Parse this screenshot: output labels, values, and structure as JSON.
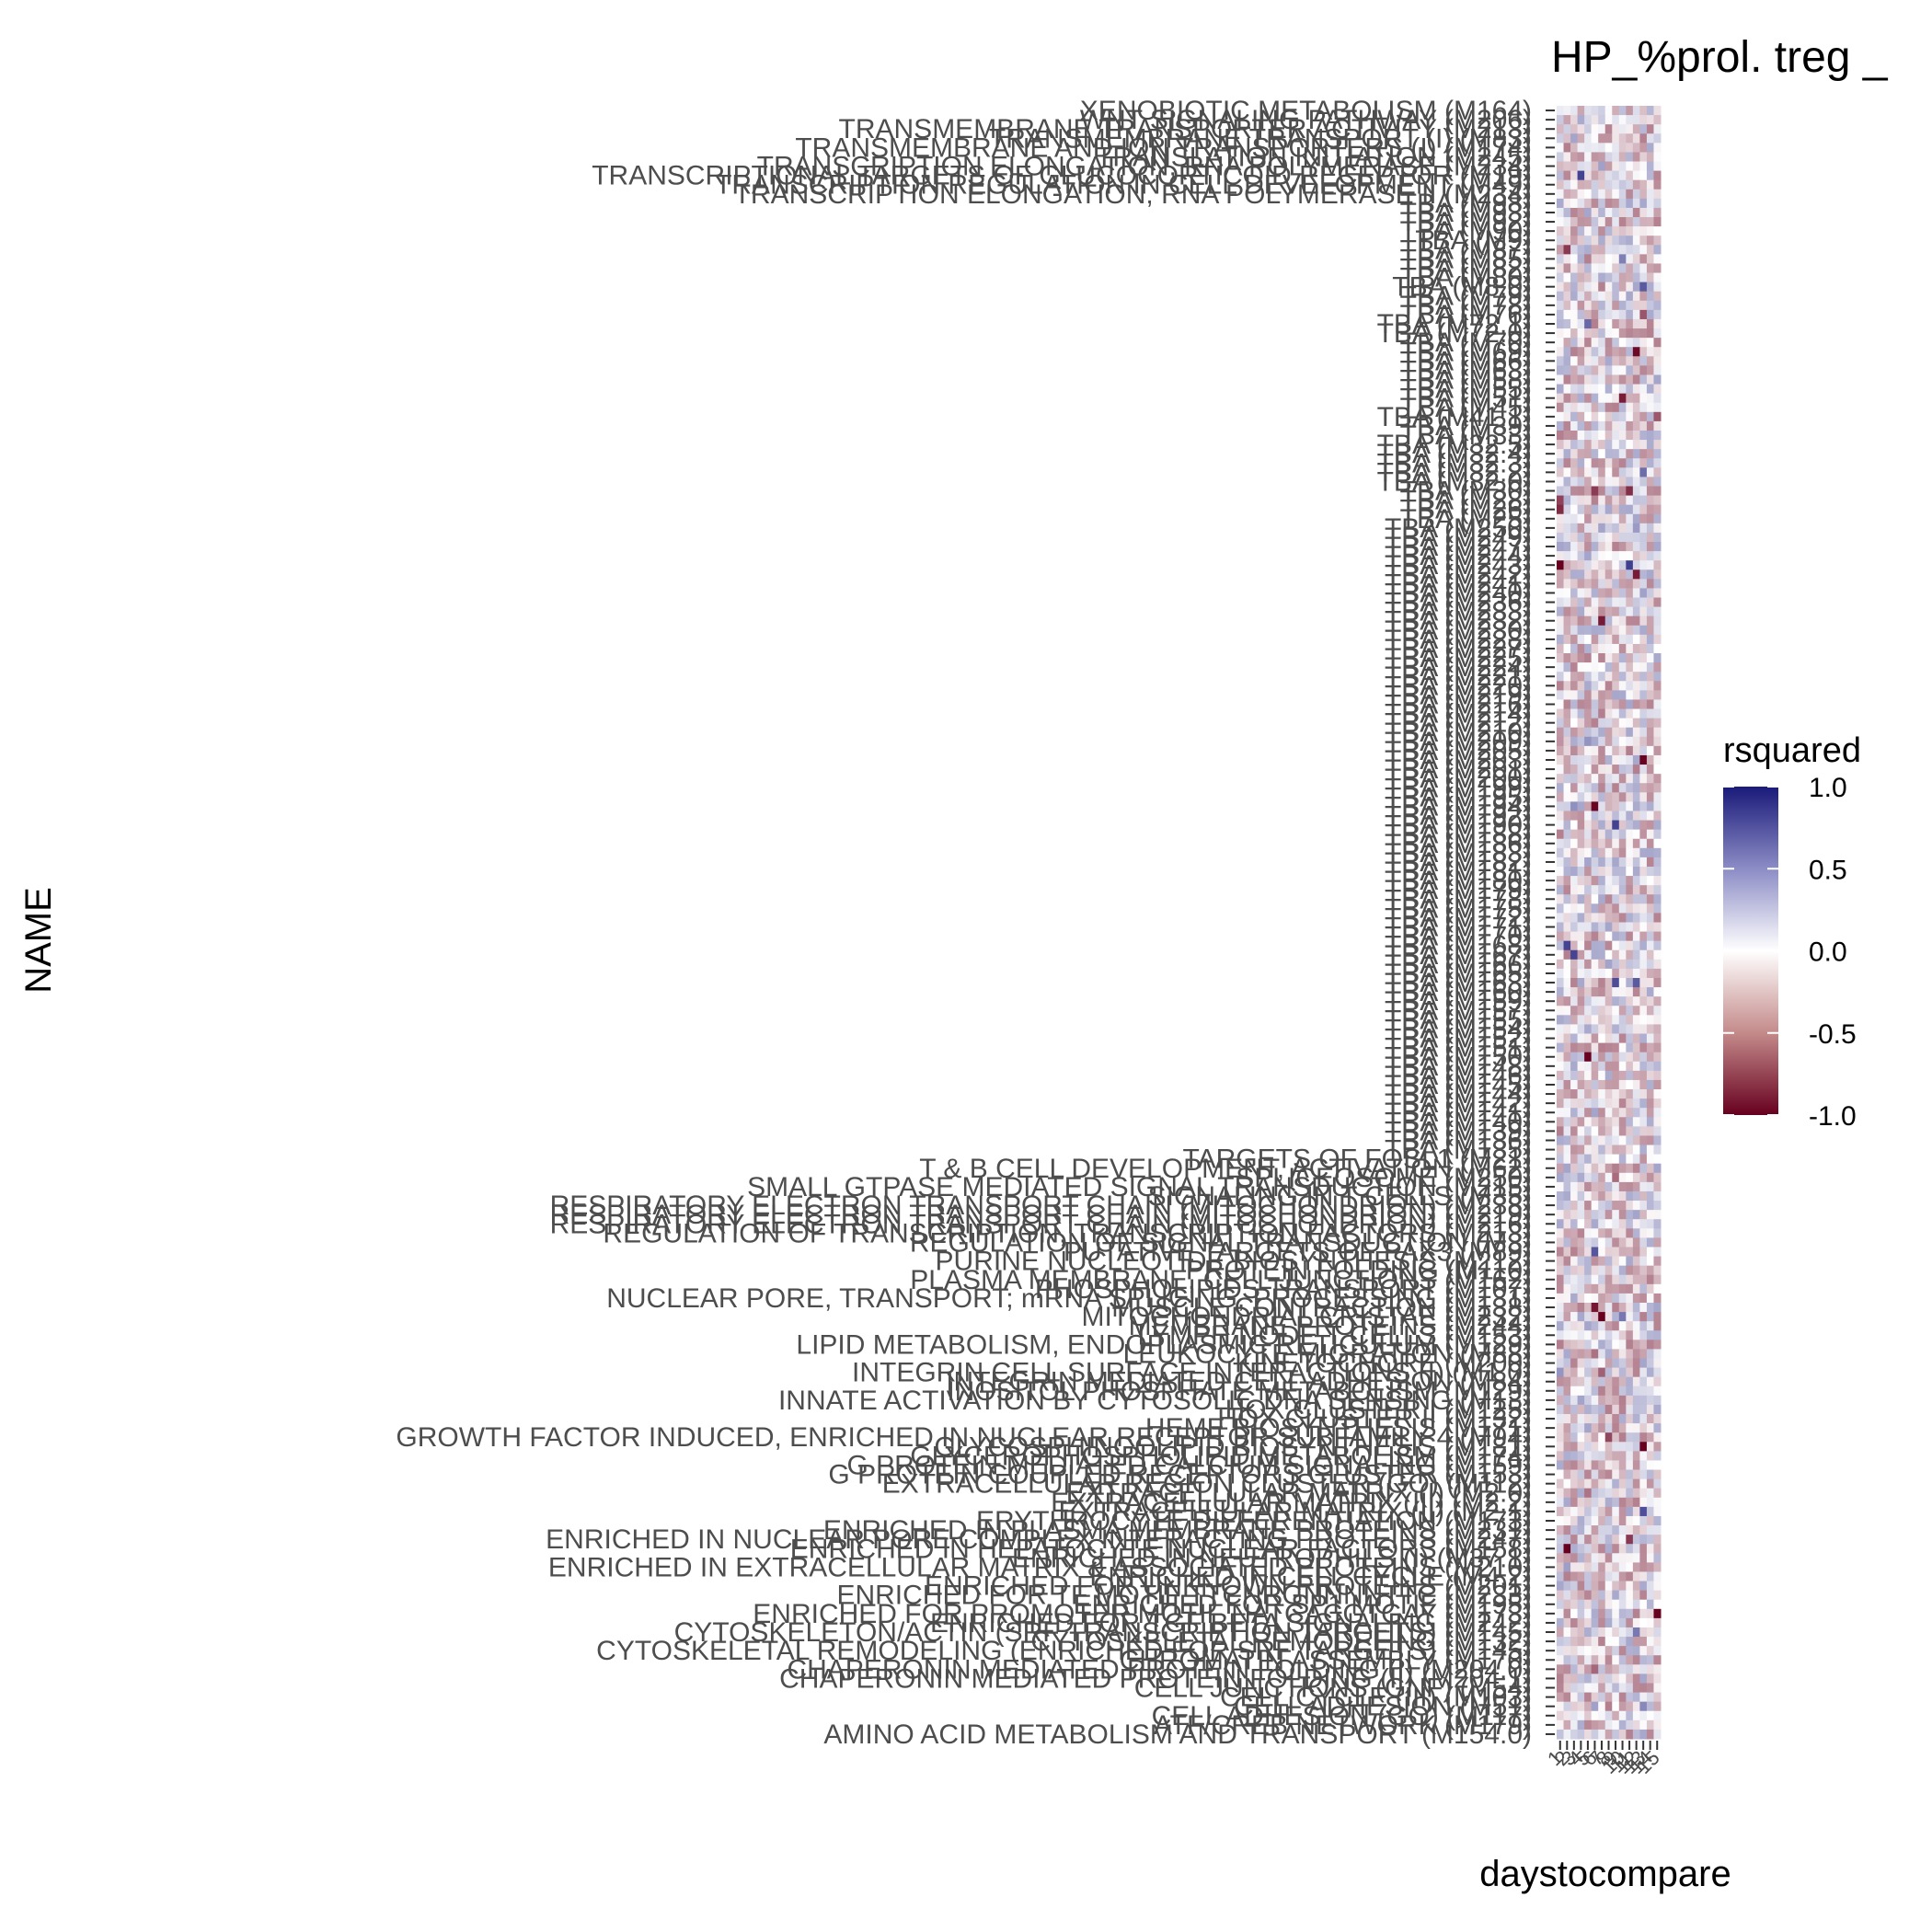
{
  "chart_data": {
    "type": "heatmap",
    "title": "HP_%prol. treg _",
    "xlabel": "daystocompare",
    "ylabel": "NAME",
    "x_categories": [
      "1",
      "2",
      "3",
      "4",
      "5",
      "6",
      "7",
      "8",
      "9",
      "10",
      "11",
      "12",
      "13",
      "14",
      "15"
    ],
    "y_categories": [
      "XENOBIOTIC METABOLISM (M164)",
      "WNT SIGNALING PATHWAY (M206)",
      "TRANSMEMBRANE TRANSPORTER ACTIVITY (M213)",
      "TRANSMEMBRANE TRANSPORT (I) (M83)",
      "TRANSMEMBRANE AND ION TRANSPORTERS (I) (M174)",
      "TRANSLATION INITIATION (M245)",
      "TRANSCRIPTION ELONGATION, RNA POLYMERASE (M234)",
      "TRANSCRIPTIONAL TARGETS OF GLUCOCORTICOID RECEPTOR (M19)",
      "TRANSCRIPTION REGULATION IN CELL DEVELOPMENT (M49)",
      "TRANSCRIPTION ELONGATION, RNA POLYMERASE II (M234)",
      "TBA (M98)",
      "TBA (M93)",
      "TBA (M92)",
      "TBA (M90)",
      "TBA (M9)",
      "TBA (M87)",
      "TBA (M85)",
      "TBA (M82)",
      "TBA (M80)",
      "TBA (M8.0)",
      "TBA (M79)",
      "TBA (M78)",
      "TBA (M76)",
      "TBA (M72.1)",
      "TBA (M72.0)",
      "TBA (M70)",
      "TBA (M69)",
      "TBA (M66)",
      "TBA (M63)",
      "TBA (M58)",
      "TBA (M55)",
      "TBA (M51)",
      "TBA (M45)",
      "TBA (M41.1)",
      "TBA (M39)",
      "TBA (M33)",
      "TBA (M32.5)",
      "TBA (M32.4)",
      "TBA (M32.3)",
      "TBA (M32.2)",
      "TBA (M32.0)",
      "TBA (M30)",
      "TBA (M28)",
      "TBA (M26)",
      "TBA (M25)",
      "TBA (M250)",
      "TBA (M249)",
      "TBA (M247)",
      "TBA (M244)",
      "TBA (M243)",
      "TBA (M242)",
      "TBA (M241)",
      "TBA (M240)",
      "TBA (M236)",
      "TBA (M233)",
      "TBA (M232)",
      "TBA (M230)",
      "TBA (M228)",
      "TBA (M227)",
      "TBA (M225)",
      "TBA (M224)",
      "TBA (M221)",
      "TBA (M220)",
      "TBA (M219)",
      "TBA (M216)",
      "TBA (M214)",
      "TBA (M212)",
      "TBA (M210)",
      "TBA (M209)",
      "TBA (M205)",
      "TBA (M203)",
      "TBA (M201)",
      "TBA (M200)",
      "TBA (M199)",
      "TBA (M195)",
      "TBA (M194)",
      "TBA (M192)",
      "TBA (M190)",
      "TBA (M188)",
      "TBA (M186)",
      "TBA (M183)",
      "TBA (M182)",
      "TBA (M181)",
      "TBA (M180)",
      "TBA (M179)",
      "TBA (M178)",
      "TBA (M175)",
      "TBA (M172)",
      "TBA (M171)",
      "TBA (M170)",
      "TBA (M168)",
      "TBA (M167)",
      "TBA (M166)",
      "TBA (M165)",
      "TBA (M163)",
      "TBA (M160)",
      "TBA (M159)",
      "TBA (M157)",
      "TBA (M155)",
      "TBA (M154)",
      "TBA (M152)",
      "TBA (M151)",
      "TBA (M150)",
      "TBA (M148)",
      "TBA (M146)",
      "TBA (M145)",
      "TBA (M144)",
      "TBA (M142)",
      "TBA (M141)",
      "TBA (M140)",
      "TBA (M139)",
      "TBA (M136)",
      "TBA (M135)",
      "TARGETS OF FOSL1 (M21)",
      "T & B CELL DEVELOPMENT, ACTIVATION (M62)",
      "SPLICEOSOME (M250)",
      "SMALL GTPASE MEDIATED SIGNAL TRANSDUCTION (M215)",
      "SIGNALING IN T CELLS (M35)",
      "RESPIRATORY ELECTRON TRANSPORT CHAIN (MITOCHONDRION) (M238)",
      "RESPIRATORY ELECTRON TRANSPORT CHAIN (MITOCHONDRION) (M219)",
      "RESPIRATORY ELECTRON TRANSPORT CHAIN (MITOCHONDRION) (M216)",
      "REGULATION OF TRANSCRIPTION, TRANSCRIPTION FACTORS (M213)",
      "REGULATION OF SIGNAL TRANSDUCTION (M3)",
      "PUTATIVE TARGETS OF PAX3 (M89)",
      "PURINE NUCLEOTIDE BIOSYNTHESIS (M212)",
      "PROTEIN FOLDING (M110)",
      "PLASMA MEMBRANE, CELL JUNCTIONS (M162)",
      "PHOSPHOLIPIDS TRANSPORT (M107)",
      "NUCLEAR PORE, TRANSPORT; mRNA SPLICING, PROCESSING (M131)",
      "MUSCLE CONTRACTION (M138)",
      "MITOCHONDRIAL CRISTAE (M232)",
      "MEMBRANE PROTEINS (M244)",
      "LYMPH NODE T CELLS (M153)",
      "LIPID METABOLISM, ENDOPLASMIC RETICULUM (M129)",
      "LEUKOCYTE MIGRATION (M88)",
      "KINETOCHORE (M200)",
      "INTEGRIN CELL SURFACE INTERACTIONS (I) (M1.0)",
      "INTEGRIN MEDIATED CELL ADHESION (M84)",
      "INOSITOL PHOSPHATE METABOLISM (M129)",
      "INNATE ACTIVATION BY CYTOSOLIC DNA SENSING (M13)",
      "HOX CLUSTER I (M125)",
      "HOX CLUSTER II (M132)",
      "HEME BIOSYNTHESIS (M171)",
      "GROWTH FACTOR INDUCED, ENRICHED IN NUCLEAR RECEPTOR SUBFAMILY 4 (M94)",
      "GLYCOSPHINGOLIPID BIOSYNTHESIS (M181)",
      "GLYCEROPHOSPHOLIPID METABOLISM (M174)",
      "G PROTEIN MEDIATED CALCIUM SIGNALING (M159)",
      "G PROTEIN COUPLED RECEPTORS CLUSTER (M153)",
      "EXTRACELLULAR REGION CLUSTER (GO) (M112)",
      "EXTRACELLULAR MATRIX (I) (M2.0)",
      "EXTRACELLULAR MATRIX (III) (M2.2)",
      "EXTRACELLULAR MATRIX (II) (M2.1)",
      "ERYTHROCYTE DIFFERENTIATION (M173)",
      "ENRICHED IN PLASMA MEMBRANE PROTEINS (M231)",
      "ENRICHED IN NUCLEAR PORE COMPLEX INTERACTING PROTEINS (M247)",
      "ENRICHED IN HEPATOCYTE NUCLEAR FACTORS (M158)",
      "ENRICHED IN NEUTROPHILS (I) (M37.1)",
      "ENRICHED IN EXTRACELLULAR MATRIX & ASSOCIATED PROTEINS (M210)",
      "ENRICHED IN CELL CYCLE (M4.2)",
      "ENRICHED FOR UNKNOWN PROTEINS (M201)",
      "ENRICHED FOR TF MOTIF TTCNRGNNNNTTC (M233)",
      "ENRICHED FOR SP1 MOTIF (M195)",
      "ENRICHED FOR PROMOTER MOTIF NATCACGTGAY (M173)",
      "ENRICHED FOR TGF BETA SIGNALING (M242)",
      "CYTOSKELETON/ACTIN (SRF TRANSCRIPTION TARGETS) (M145)",
      "CYTOSKELETAL REMODELING (M132)",
      "CYTOSKELETAL REMODELING (ENRICHED FOR SRF TARGETS) (M145)",
      "CHROMATIN ASSEMBLY (M170)",
      "CHAPERONIN MEDIATED PROTEIN FOLDING (I) (M204.0)",
      "CHAPERONIN MEDIATED PROTEIN FOLDING (II) (M204.1)",
      "CELL JUNCTIONS (GNF) (M54)",
      "CELL CYCLE (III) (M103)",
      "CELL ADHESION (M51)",
      "CELL ADHESION (GO) (M117)",
      "ATF/CREB NETWORK (M179)",
      "AMINO ACID METABOLISM AND TRANSPORT (M154.0)"
    ],
    "z_label": "rsquared",
    "z_range": [
      -1.0,
      1.0
    ],
    "colorscale": {
      "low": "#67001f",
      "mid": "#ffffff",
      "high": "#1a1a7a"
    },
    "legend_ticks": [
      "1.0",
      "0.5",
      "0.0",
      "-0.5",
      "-1.0"
    ],
    "legend_position": "right",
    "values_note": "cell values are mostly weak (|r| < 0.5), mixed red and blue"
  }
}
